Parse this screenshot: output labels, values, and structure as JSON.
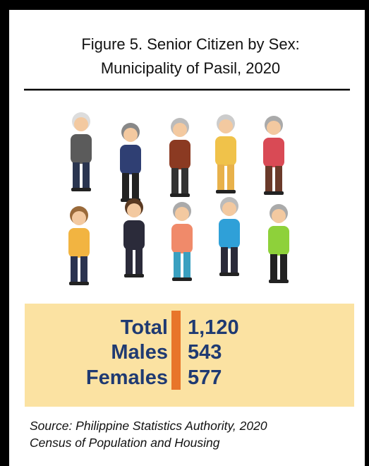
{
  "title": [
    "Figure 5. Senior Citizen by Sex:",
    "Municipality of Pasil, 2020"
  ],
  "stats": [
    {
      "label": "Total",
      "value": "1,120"
    },
    {
      "label": "Males",
      "value": "543"
    },
    {
      "label": "Females",
      "value": "577"
    }
  ],
  "source": [
    "Source: Philippine Statistics Authority, 2020",
    "Census of Population and Housing"
  ]
}
